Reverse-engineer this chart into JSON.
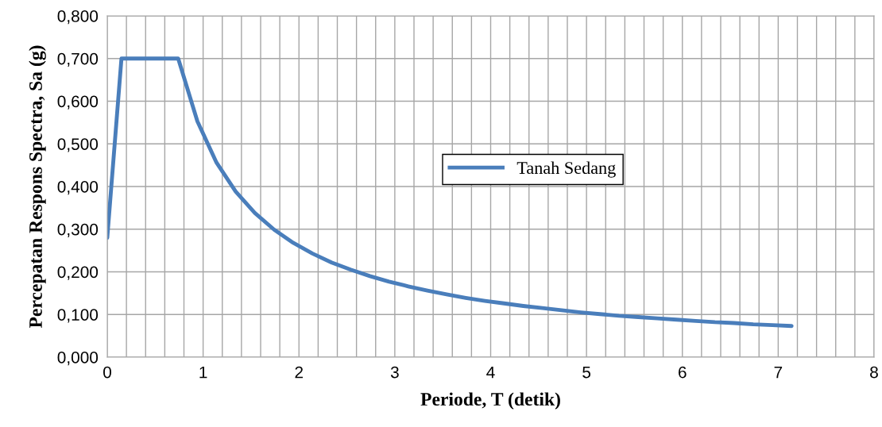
{
  "chart_data": {
    "type": "line",
    "xlabel": "Periode, T (detik)",
    "ylabel": "Percepatan Respons Spectra, Sa (g)",
    "x": [
      0,
      0.148,
      0.74,
      0.94,
      1.14,
      1.34,
      1.54,
      1.74,
      1.94,
      2.14,
      2.34,
      2.54,
      2.74,
      2.94,
      3.14,
      3.34,
      3.54,
      3.74,
      3.94,
      4.14,
      4.34,
      4.54,
      4.74,
      4.94,
      5.14,
      5.34,
      5.54,
      5.74,
      5.94,
      6.14,
      6.34,
      6.54,
      6.74,
      6.94,
      7.14
    ],
    "series": [
      {
        "name": "Tanah Sedang",
        "color": "#4a7ebb",
        "values": [
          0.28,
          0.7,
          0.7,
          0.553,
          0.456,
          0.388,
          0.338,
          0.299,
          0.268,
          0.243,
          0.222,
          0.205,
          0.19,
          0.177,
          0.166,
          0.156,
          0.147,
          0.139,
          0.132,
          0.126,
          0.12,
          0.115,
          0.11,
          0.105,
          0.101,
          0.097,
          0.094,
          0.091,
          0.088,
          0.085,
          0.082,
          0.08,
          0.077,
          0.075,
          0.073
        ]
      }
    ],
    "xlim": [
      0,
      8
    ],
    "ylim": [
      0,
      0.8
    ],
    "xticks": [
      0,
      {
        "value": 0.2,
        "label": null
      },
      {
        "value": 0.4,
        "label": null
      },
      {
        "value": 0.6,
        "label": null
      },
      {
        "value": 0.8,
        "label": null
      },
      1,
      {
        "value": 1.2,
        "label": null
      },
      {
        "value": 1.4,
        "label": null
      },
      {
        "value": 1.6,
        "label": null
      },
      {
        "value": 1.8,
        "label": null
      },
      2,
      {
        "value": 2.2,
        "label": null
      },
      {
        "value": 2.4,
        "label": null
      },
      {
        "value": 2.6,
        "label": null
      },
      {
        "value": 2.8,
        "label": null
      },
      3,
      {
        "value": 3.2,
        "label": null
      },
      {
        "value": 3.4,
        "label": null
      },
      {
        "value": 3.6,
        "label": null
      },
      {
        "value": 3.8,
        "label": null
      },
      4,
      {
        "value": 4.2,
        "label": null
      },
      {
        "value": 4.4,
        "label": null
      },
      {
        "value": 4.6,
        "label": null
      },
      {
        "value": 4.8,
        "label": null
      },
      5,
      {
        "value": 5.2,
        "label": null
      },
      {
        "value": 5.4,
        "label": null
      },
      {
        "value": 5.6,
        "label": null
      },
      {
        "value": 5.8,
        "label": null
      },
      6,
      {
        "value": 6.2,
        "label": null
      },
      {
        "value": 6.4,
        "label": null
      },
      {
        "value": 6.6,
        "label": null
      },
      {
        "value": 6.8,
        "label": null
      },
      7,
      {
        "value": 7.2,
        "label": null
      },
      {
        "value": 7.4,
        "label": null
      },
      {
        "value": 7.6,
        "label": null
      },
      {
        "value": 7.8,
        "label": null
      },
      8
    ],
    "yticks": [
      {
        "value": 0,
        "label": "0,000"
      },
      {
        "value": 0.1,
        "label": "0,100"
      },
      {
        "value": 0.2,
        "label": "0,200"
      },
      {
        "value": 0.3,
        "label": "0,300"
      },
      {
        "value": 0.4,
        "label": "0,400"
      },
      {
        "value": 0.5,
        "label": "0,500"
      },
      {
        "value": 0.6,
        "label": "0,600"
      },
      {
        "value": 0.7,
        "label": "0,700"
      },
      {
        "value": 0.8,
        "label": "0,800"
      }
    ],
    "grid": true,
    "legend": "center",
    "marker": "none",
    "line_style": "solid"
  }
}
